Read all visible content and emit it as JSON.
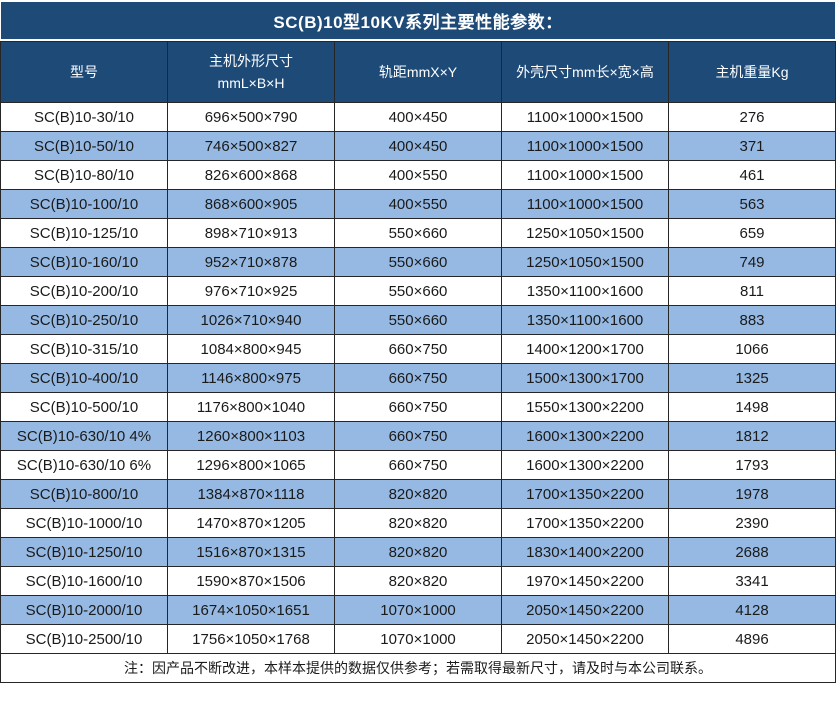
{
  "title": "SC(B)10型10KV系列主要性能参数：",
  "colors": {
    "header_bg": "#1E4A78",
    "header_text": "#FFFFFF",
    "row_alt_bg": "#95B9E3",
    "row_bg": "#FFFFFF",
    "border": "#262626",
    "text": "#1A1A1A"
  },
  "table": {
    "columns": [
      {
        "label": "型号"
      },
      {
        "label": "主机外形尺寸\nmmL×B×H"
      },
      {
        "label": "轨距mmX×Y"
      },
      {
        "label": "外壳尺寸mm长×宽×高"
      },
      {
        "label": "主机重量Kg"
      }
    ],
    "rows": [
      [
        "SC(B)10-30/10",
        "696×500×790",
        "400×450",
        "1100×1000×1500",
        "276"
      ],
      [
        "SC(B)10-50/10",
        "746×500×827",
        "400×450",
        "1100×1000×1500",
        "371"
      ],
      [
        "SC(B)10-80/10",
        "826×600×868",
        "400×550",
        "1100×1000×1500",
        "461"
      ],
      [
        "SC(B)10-100/10",
        "868×600×905",
        "400×550",
        "1100×1000×1500",
        "563"
      ],
      [
        "SC(B)10-125/10",
        "898×710×913",
        "550×660",
        "1250×1050×1500",
        "659"
      ],
      [
        "SC(B)10-160/10",
        "952×710×878",
        "550×660",
        "1250×1050×1500",
        "749"
      ],
      [
        "SC(B)10-200/10",
        "976×710×925",
        "550×660",
        "1350×1100×1600",
        "811"
      ],
      [
        "SC(B)10-250/10",
        "1026×710×940",
        "550×660",
        "1350×1100×1600",
        "883"
      ],
      [
        "SC(B)10-315/10",
        "1084×800×945",
        "660×750",
        "1400×1200×1700",
        "1066"
      ],
      [
        "SC(B)10-400/10",
        "1146×800×975",
        "660×750",
        "1500×1300×1700",
        "1325"
      ],
      [
        "SC(B)10-500/10",
        "1176×800×1040",
        "660×750",
        "1550×1300×2200",
        "1498"
      ],
      [
        "SC(B)10-630/10 4%",
        "1260×800×1103",
        "660×750",
        "1600×1300×2200",
        "1812"
      ],
      [
        "SC(B)10-630/10 6%",
        "1296×800×1065",
        "660×750",
        "1600×1300×2200",
        "1793"
      ],
      [
        "SC(B)10-800/10",
        "1384×870×1118",
        "820×820",
        "1700×1350×2200",
        "1978"
      ],
      [
        "SC(B)10-1000/10",
        "1470×870×1205",
        "820×820",
        "1700×1350×2200",
        "2390"
      ],
      [
        "SC(B)10-1250/10",
        "1516×870×1315",
        "820×820",
        "1830×1400×2200",
        "2688"
      ],
      [
        "SC(B)10-1600/10",
        "1590×870×1506",
        "820×820",
        "1970×1450×2200",
        "3341"
      ],
      [
        "SC(B)10-2000/10",
        "1674×1050×1651",
        "1070×1000",
        "2050×1450×2200",
        "4128"
      ],
      [
        "SC(B)10-2500/10",
        "1756×1050×1768",
        "1070×1000",
        "2050×1450×2200",
        "4896"
      ]
    ]
  },
  "note": "注：因产品不断改进，本样本提供的数据仅供参考；若需取得最新尺寸，请及时与本公司联系。"
}
